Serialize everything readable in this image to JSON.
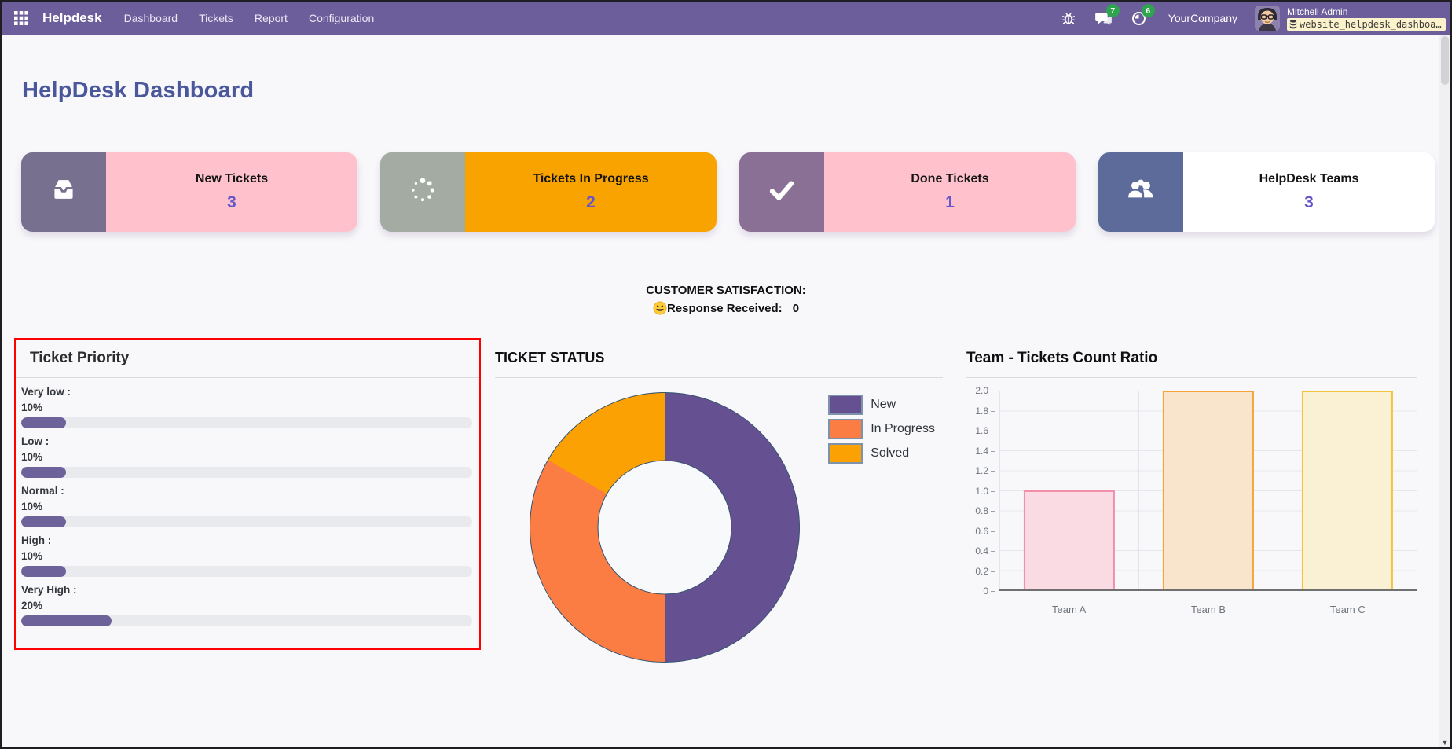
{
  "theme": {
    "navbar_bg": "#6b5e9b",
    "page_bg": "#f8f8fb",
    "title_color": "#4a589b",
    "accent_number": "#6557c9",
    "badge_green": "#2fa44e",
    "priority_panel_border": "#ff0000"
  },
  "nav": {
    "brand": "Helpdesk",
    "items": [
      "Dashboard",
      "Tickets",
      "Report",
      "Configuration"
    ],
    "message_badge": "7",
    "activity_badge": "6",
    "company": "YourCompany",
    "user_name": "Mitchell Admin",
    "debug_label": "website_helpdesk_dashboa…"
  },
  "page_title": "HelpDesk Dashboard",
  "kpis": [
    {
      "label": "New Tickets",
      "value": "3",
      "icon": "inbox-icon",
      "icon_bg": "#77708e",
      "body_bg": "#ffc2cd"
    },
    {
      "label": "Tickets In Progress",
      "value": "2",
      "icon": "spinner-icon",
      "icon_bg": "#a3aba3",
      "body_bg": "#f8a300"
    },
    {
      "label": "Done Tickets",
      "value": "1",
      "icon": "check-icon",
      "icon_bg": "#8a7094",
      "body_bg": "#ffc2cd"
    },
    {
      "label": "HelpDesk Teams",
      "value": "3",
      "icon": "users-icon",
      "icon_bg": "#5c6b99",
      "body_bg": "#ffffff"
    }
  ],
  "satisfaction": {
    "heading": "CUSTOMER SATISFACTION:",
    "icon": "smiley-icon",
    "label": "Response Received:",
    "value": "0"
  },
  "chart_data": [
    {
      "type": "bar",
      "variant": "horizontal-progress-list",
      "title": "Ticket Priority",
      "categories": [
        "Very low :",
        "Low :",
        "Normal :",
        "High :",
        "Very High :"
      ],
      "values": [
        10,
        10,
        10,
        10,
        20
      ],
      "value_labels": [
        "10%",
        "10%",
        "10%",
        "10%",
        "20%"
      ],
      "xlim": [
        0,
        100
      ],
      "bar_color": "#6d6299",
      "track_color": "#e8eaee"
    },
    {
      "type": "pie",
      "variant": "donut",
      "title": "TICKET STATUS",
      "labels": [
        "New",
        "In Progress",
        "Solved"
      ],
      "values": [
        3,
        2,
        1
      ],
      "percents": [
        50,
        33.33,
        16.67
      ],
      "colors": [
        "#655192",
        "#fb7d44",
        "#fca103"
      ],
      "legend_position": "right"
    },
    {
      "type": "bar",
      "title": "Team - Tickets Count Ratio",
      "categories": [
        "Team A",
        "Team B",
        "Team C"
      ],
      "values": [
        1,
        2,
        2
      ],
      "ylim": [
        0,
        2
      ],
      "yticks": [
        "2.0",
        "1.8",
        "1.6",
        "1.4",
        "1.2",
        "1.0",
        "0.8",
        "0.6",
        "0.4",
        "0.2",
        "0"
      ],
      "grid": true,
      "bar_fill_colors": [
        "#fadbe4",
        "#f9e5cb",
        "#faf0d3"
      ],
      "bar_border_colors": [
        "#f290ac",
        "#f4a43b",
        "#f2c53d"
      ]
    }
  ]
}
